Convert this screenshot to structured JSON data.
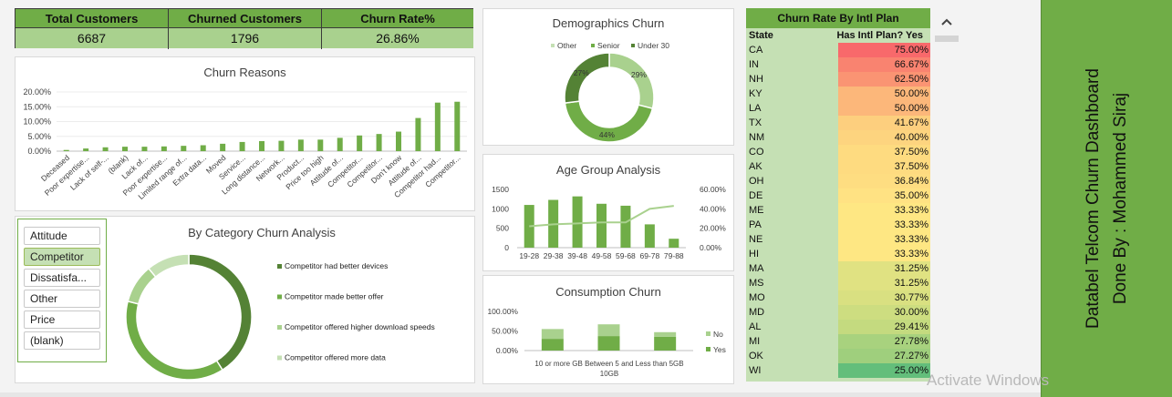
{
  "kpis": [
    {
      "label": "Total Customers",
      "value": "6687"
    },
    {
      "label": "Churned Customers",
      "value": "1796"
    },
    {
      "label": "Churn Rate%",
      "value": "26.86%"
    }
  ],
  "churn_reasons": {
    "title": "Churn Reasons",
    "yticks": [
      "20.00%",
      "15.00%",
      "10.00%",
      "5.00%",
      "0.00%"
    ]
  },
  "category": {
    "title": "By Category Churn Analysis",
    "slicer": [
      {
        "label": "Attitude",
        "selected": false
      },
      {
        "label": "Competitor",
        "selected": true
      },
      {
        "label": "Dissatisfa...",
        "selected": false
      },
      {
        "label": "Other",
        "selected": false
      },
      {
        "label": "Price",
        "selected": false
      },
      {
        "label": "(blank)",
        "selected": false
      }
    ],
    "legend": [
      "Competitor had better devices",
      "Competitor made better offer",
      "Competitor offered higher download speeds",
      "Competitor offered more data"
    ]
  },
  "demographics": {
    "title": "Demographics Churn",
    "legend": [
      "Other",
      "Senior",
      "Under 30"
    ]
  },
  "age": {
    "title": "Age Group Analysis",
    "yticks_left": [
      "1500",
      "1000",
      "500",
      "0"
    ],
    "yticks_right": [
      "60.00%",
      "40.00%",
      "20.00%",
      "0.00%"
    ]
  },
  "consumption": {
    "title": "Consumption Churn",
    "yticks": [
      "100.00%",
      "50.00%",
      "0.00%"
    ],
    "legend": [
      "No",
      "Yes"
    ]
  },
  "intl_table": {
    "title": "Churn Rate By Intl Plan",
    "col_state": "State",
    "col_plan": "Has Intl Plan? Yes",
    "rows": [
      {
        "state": "CA",
        "rate": "75.00%",
        "color": "#f8696b"
      },
      {
        "state": "IN",
        "rate": "66.67%",
        "color": "#f98370"
      },
      {
        "state": "NH",
        "rate": "62.50%",
        "color": "#fa9473"
      },
      {
        "state": "KY",
        "rate": "50.00%",
        "color": "#fcb77a"
      },
      {
        "state": "LA",
        "rate": "50.00%",
        "color": "#fcb77a"
      },
      {
        "state": "TX",
        "rate": "41.67%",
        "color": "#fdcf7e"
      },
      {
        "state": "NM",
        "rate": "40.00%",
        "color": "#fdd47f"
      },
      {
        "state": "CO",
        "rate": "37.50%",
        "color": "#fedb80"
      },
      {
        "state": "AK",
        "rate": "37.50%",
        "color": "#fedb80"
      },
      {
        "state": "OH",
        "rate": "36.84%",
        "color": "#fedd81"
      },
      {
        "state": "DE",
        "rate": "35.00%",
        "color": "#ffe283"
      },
      {
        "state": "ME",
        "rate": "33.33%",
        "color": "#fee783"
      },
      {
        "state": "PA",
        "rate": "33.33%",
        "color": "#fee783"
      },
      {
        "state": "NE",
        "rate": "33.33%",
        "color": "#fee783"
      },
      {
        "state": "HI",
        "rate": "33.33%",
        "color": "#fee783"
      },
      {
        "state": "MA",
        "rate": "31.25%",
        "color": "#e0e282"
      },
      {
        "state": "MS",
        "rate": "31.25%",
        "color": "#e0e282"
      },
      {
        "state": "MO",
        "rate": "30.77%",
        "color": "#d9e081"
      },
      {
        "state": "MD",
        "rate": "30.00%",
        "color": "#cddd80"
      },
      {
        "state": "AL",
        "rate": "29.41%",
        "color": "#c4da7f"
      },
      {
        "state": "MI",
        "rate": "27.78%",
        "color": "#a8d27e"
      },
      {
        "state": "OK",
        "rate": "27.27%",
        "color": "#9fcf7d"
      },
      {
        "state": "WI",
        "rate": "25.00%",
        "color": "#63be7b"
      }
    ]
  },
  "banner": {
    "line1": "Databel Telcom Churn Dashboard",
    "line2": "Done By : Mohammed Siraj"
  },
  "watermark": "Activate Windows",
  "chart_data": [
    {
      "type": "bar",
      "title": "Churn Reasons",
      "categories": [
        "Deceased",
        "Poor expertise...",
        "Lack of self-...",
        "(blank)",
        "Lack of...",
        "Poor expertise...",
        "Limited range of...",
        "Extra data...",
        "Moved",
        "Service...",
        "Long distance...",
        "Network...",
        "Product...",
        "Price too high",
        "Attitude of...",
        "Competitor...",
        "Competitor...",
        "Don't know",
        "Attitude of...",
        "Competitor had...",
        "Competitor..."
      ],
      "values": [
        0.4,
        0.9,
        1.3,
        1.5,
        1.5,
        1.6,
        1.8,
        2.0,
        2.5,
        3.1,
        3.4,
        3.5,
        3.9,
        3.9,
        4.5,
        5.3,
        5.8,
        6.6,
        11.2,
        16.4,
        16.7
      ],
      "ylim": [
        0,
        20
      ]
    },
    {
      "type": "pie",
      "title": "Demographics Churn",
      "categories": [
        "Under 30",
        "Senior",
        "Other"
      ],
      "values": [
        29,
        44,
        27
      ],
      "labels": [
        "29%",
        "44%",
        "27%"
      ]
    },
    {
      "type": "bar",
      "title": "Age Group Analysis",
      "categories": [
        "19-28",
        "29-38",
        "39-48",
        "49-58",
        "59-68",
        "69-78",
        "79-88"
      ],
      "series": [
        {
          "values": [
            1100,
            1230,
            1320,
            1130,
            1080,
            600,
            230
          ]
        },
        {
          "values": [
            22,
            24,
            25,
            26,
            26,
            40,
            43
          ]
        }
      ],
      "ylim": [
        0,
        1500
      ],
      "ylim_right": [
        0,
        60
      ]
    },
    {
      "type": "bar",
      "title": "Consumption Churn",
      "categories": [
        "10 or more GB",
        "Between 5 and 10GB",
        "Less than 5GB"
      ],
      "series": [
        {
          "name": "Yes",
          "values": [
            30,
            37,
            35
          ]
        },
        {
          "name": "No",
          "values": [
            25,
            30,
            12
          ]
        }
      ],
      "ylim": [
        0,
        100
      ],
      "xlabel_lines": [
        "10 or more GB Between 5 and Less than 5GB",
        "10GB"
      ]
    },
    {
      "type": "pie",
      "title": "By Category Churn Analysis",
      "categories": [
        "Competitor had better devices",
        "Competitor made better offer",
        "Competitor offered higher download speeds",
        "Competitor offered more data"
      ],
      "values": [
        41,
        38,
        10,
        11
      ]
    }
  ]
}
